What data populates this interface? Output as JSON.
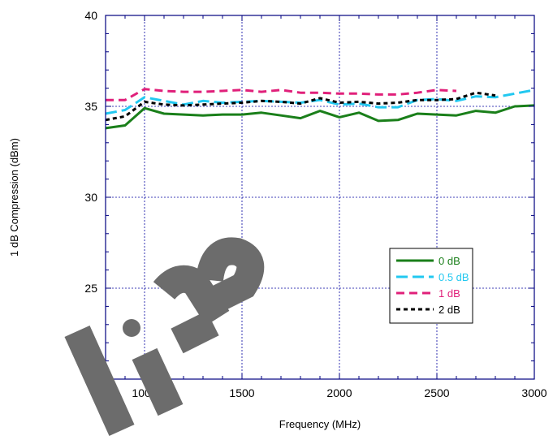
{
  "chart_data": {
    "type": "line",
    "xlabel": "Frequency (MHz)",
    "ylabel": "1 dB Compression (dBm)",
    "xlim": [
      800,
      3000
    ],
    "ylim": [
      20,
      40
    ],
    "xticks": [
      1000,
      1500,
      2000,
      2500,
      3000
    ],
    "yticks": [
      20,
      25,
      30,
      35,
      40
    ],
    "grid": true,
    "legend_position": "right",
    "series": [
      {
        "name": "0 dB",
        "color": "#1a7f1a",
        "style": "solid",
        "x": [
          800,
          900,
          1000,
          1100,
          1200,
          1300,
          1400,
          1500,
          1600,
          1700,
          1800,
          1900,
          2000,
          2100,
          2200,
          2300,
          2400,
          2500,
          2600,
          2700,
          2800,
          2900,
          3000
        ],
        "y": [
          33.8,
          33.95,
          34.9,
          34.6,
          34.55,
          34.5,
          34.55,
          34.55,
          34.65,
          34.5,
          34.35,
          34.75,
          34.4,
          34.65,
          34.2,
          34.25,
          34.6,
          34.55,
          34.5,
          34.75,
          34.65,
          35.0,
          35.05
        ]
      },
      {
        "name": "0.5 dB",
        "color": "#22c8f0",
        "style": "long-dash",
        "x": [
          800,
          900,
          1000,
          1100,
          1200,
          1300,
          1400,
          1500,
          1600,
          1700,
          1800,
          1900,
          2000,
          2100,
          2200,
          2300,
          2400,
          2500,
          2600,
          2700,
          2800,
          2900,
          3000
        ],
        "y": [
          34.6,
          34.8,
          35.5,
          35.3,
          35.1,
          35.3,
          35.2,
          35.25,
          35.3,
          35.25,
          35.2,
          35.35,
          35.1,
          35.15,
          34.95,
          34.95,
          35.35,
          35.4,
          35.3,
          35.55,
          35.5,
          35.7,
          35.9
        ]
      },
      {
        "name": "1 dB",
        "color": "#e0207a",
        "style": "dash",
        "x": [
          800,
          900,
          1000,
          1100,
          1200,
          1300,
          1400,
          1500,
          1600,
          1700,
          1800,
          1900,
          2000,
          2100,
          2200,
          2300,
          2400,
          2500,
          2600
        ],
        "y": [
          35.35,
          35.35,
          35.95,
          35.85,
          35.8,
          35.8,
          35.85,
          35.9,
          35.8,
          35.9,
          35.75,
          35.75,
          35.7,
          35.7,
          35.65,
          35.65,
          35.75,
          35.9,
          35.85
        ]
      },
      {
        "name": "2 dB",
        "color": "#000000",
        "style": "short-dash",
        "x": [
          800,
          900,
          1000,
          1100,
          1200,
          1300,
          1400,
          1500,
          1600,
          1700,
          1800,
          1900,
          2000,
          2100,
          2200,
          2300,
          2400,
          2500,
          2600,
          2700,
          2800
        ],
        "y": [
          34.25,
          34.45,
          35.25,
          35.1,
          35.05,
          35.1,
          35.15,
          35.2,
          35.3,
          35.25,
          35.15,
          35.45,
          35.2,
          35.25,
          35.15,
          35.2,
          35.35,
          35.35,
          35.4,
          35.75,
          35.6
        ]
      }
    ]
  },
  "watermark": "Life"
}
